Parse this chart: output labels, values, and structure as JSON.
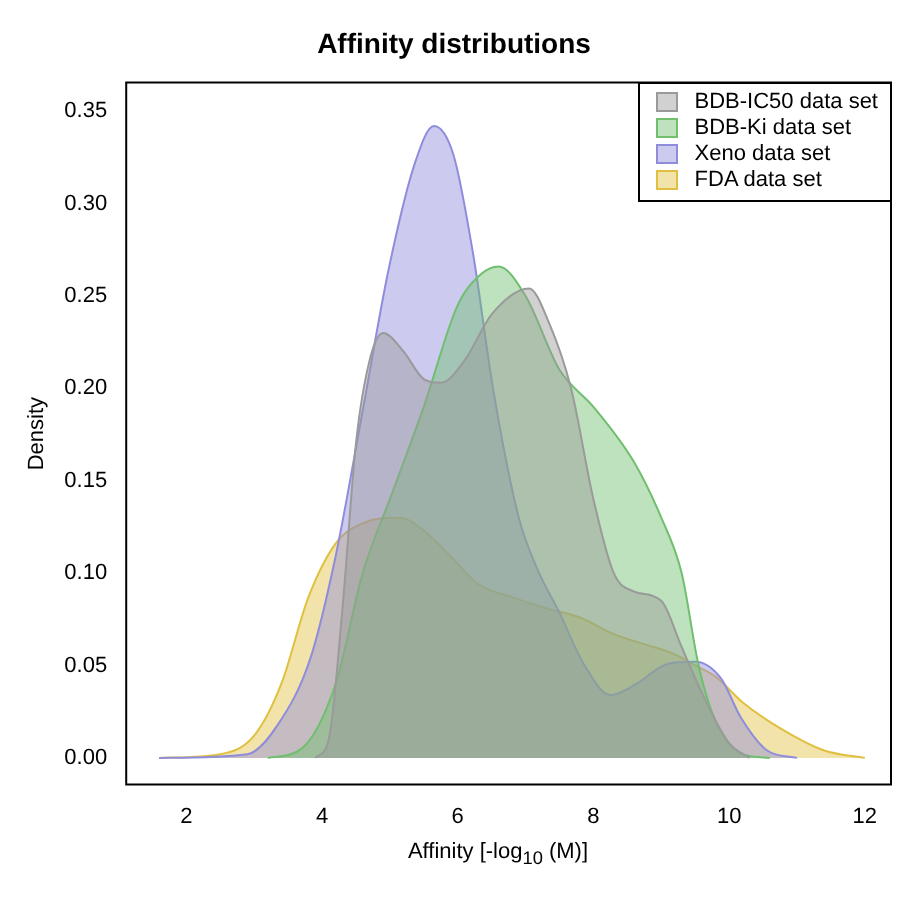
{
  "chart_data": {
    "type": "area",
    "title": "Affinity distributions",
    "xlabel": "Affinity [-log$_{10}$ (M)]",
    "ylabel": "Density",
    "xlim": [
      1.1,
      12.4
    ],
    "xticks": [
      2,
      4,
      6,
      8,
      10,
      12
    ],
    "ylim": [
      -0.015,
      0.366
    ],
    "yticks": [
      {
        "value": 0,
        "label": "0.00"
      },
      {
        "value": 0.05,
        "label": "0.05"
      },
      {
        "value": 0.1,
        "label": "0.10"
      },
      {
        "value": 0.15,
        "label": "0.15"
      },
      {
        "value": 0.2,
        "label": "0.20"
      },
      {
        "value": 0.25,
        "label": "0.25"
      },
      {
        "value": 0.3,
        "label": "0.30"
      },
      {
        "value": 0.35,
        "label": "0.35"
      }
    ],
    "grid": false,
    "legend": "top right",
    "marker": "none",
    "line_style": "solid",
    "series": [
      {
        "name": "BDB-IC50 data set",
        "color": "#9a9a9a",
        "x": [
          3.9,
          4.1,
          4.3,
          4.5,
          4.7,
          4.9,
          5.2,
          5.5,
          5.75,
          6.1,
          6.5,
          7.05,
          7.35,
          7.67,
          8.0,
          8.3,
          8.6,
          9.0,
          9.3,
          9.6,
          10.0,
          10.3
        ],
        "values": [
          0,
          0.01,
          0.08,
          0.17,
          0.215,
          0.23,
          0.22,
          0.205,
          0.203,
          0.215,
          0.24,
          0.254,
          0.235,
          0.2,
          0.14,
          0.1,
          0.09,
          0.085,
          0.06,
          0.035,
          0.008,
          0
        ]
      },
      {
        "name": "BDB-Ki data set",
        "color": "#6fbf6f",
        "x": [
          3.2,
          3.7,
          4.2,
          4.6,
          5.0,
          5.5,
          6.0,
          6.35,
          6.6,
          7.0,
          7.5,
          8.0,
          8.6,
          9.0,
          9.3,
          9.55,
          9.8,
          10.2,
          10.6
        ],
        "values": [
          0,
          0.005,
          0.04,
          0.1,
          0.14,
          0.19,
          0.245,
          0.262,
          0.266,
          0.25,
          0.21,
          0.19,
          0.16,
          0.13,
          0.1,
          0.05,
          0.02,
          0.002,
          0
        ]
      },
      {
        "name": "Xeno data set",
        "color": "#8f8cdc",
        "x": [
          1.6,
          2.9,
          3.35,
          3.83,
          4.2,
          4.6,
          4.98,
          5.37,
          5.65,
          5.94,
          6.23,
          6.52,
          6.9,
          7.2,
          7.48,
          7.87,
          8.25,
          8.63,
          9.1,
          9.5,
          9.88,
          10.17,
          10.56,
          11.0
        ],
        "values": [
          0,
          0.002,
          0.018,
          0.054,
          0.109,
          0.188,
          0.264,
          0.322,
          0.342,
          0.326,
          0.272,
          0.2,
          0.13,
          0.1,
          0.08,
          0.05,
          0.034,
          0.04,
          0.051,
          0.052,
          0.043,
          0.022,
          0.004,
          0
        ]
      },
      {
        "name": "FDA data set",
        "color": "#e0c040",
        "x": [
          1.6,
          2.5,
          3.0,
          3.4,
          3.8,
          4.2,
          4.6,
          5.15,
          5.5,
          5.9,
          6.3,
          6.8,
          7.3,
          7.8,
          8.3,
          8.8,
          9.2,
          9.5,
          9.8,
          10.2,
          10.8,
          11.4,
          12.0
        ],
        "values": [
          0,
          0.002,
          0.012,
          0.04,
          0.087,
          0.116,
          0.127,
          0.13,
          0.123,
          0.109,
          0.094,
          0.087,
          0.081,
          0.076,
          0.067,
          0.061,
          0.056,
          0.05,
          0.044,
          0.03,
          0.015,
          0.004,
          0
        ]
      }
    ]
  }
}
